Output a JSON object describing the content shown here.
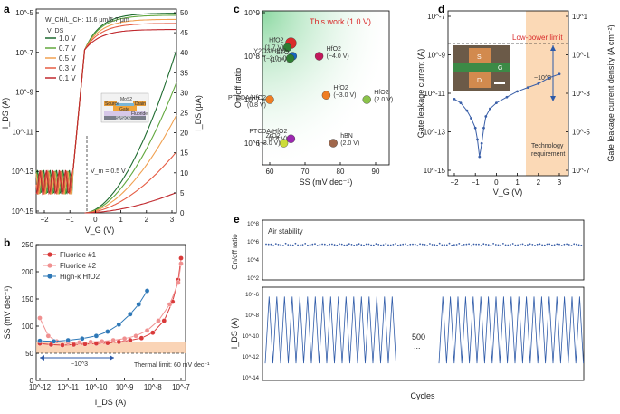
{
  "panels": {
    "a": {
      "label": "a",
      "title": "W_CH/L_CH: 11.6 μm/5.7 μm",
      "xlabel": "V_G (V)",
      "ylabel_left": "I_DS (A)",
      "ylabel_right": "I_DS (μA)",
      "legend_title": "V_DS",
      "legend": [
        "1.0 V",
        "0.7 V",
        "0.5 V",
        "0.3 V",
        "0.1 V"
      ],
      "x_ticks": [
        "−2",
        "−1",
        "0",
        "1",
        "2",
        "3"
      ],
      "y_left_ticks": [
        "10^-15",
        "10^-13",
        "10^-11",
        "10^-9",
        "10^-7",
        "10^-5"
      ],
      "y_right_ticks": [
        "0",
        "5",
        "10",
        "15",
        "20",
        "25",
        "30",
        "35",
        "40",
        "45",
        "50"
      ],
      "annotation_vm": "V_m = 0.5 V",
      "inset_labels": [
        "Source",
        "MoS2",
        "Drain",
        "Gate",
        "Fluoride",
        "Si/SiO2"
      ]
    },
    "b": {
      "label": "b",
      "xlabel": "I_DS (A)",
      "ylabel": "SS (mV dec⁻¹)",
      "legend": [
        "Fluoride #1",
        "Fluoride #2",
        "High-κ HfO2"
      ],
      "x_ticks": [
        "10^-12",
        "10^-11",
        "10^-10",
        "10^-9",
        "10^-8",
        "10^-7"
      ],
      "y_ticks": [
        "0",
        "50",
        "100",
        "150",
        "200",
        "250"
      ],
      "annotation_range": "~10^3",
      "annotation_limit": "Thermal limit: 60 mV dec⁻¹"
    },
    "c": {
      "label": "c",
      "xlabel": "SS (mV dec⁻¹)",
      "ylabel": "On/off ratio",
      "x_ticks": [
        "60",
        "70",
        "80",
        "90"
      ],
      "y_ticks": [
        "10^6",
        "10^7",
        "10^8",
        "10^9"
      ],
      "this_work": "This work (1.0 V)"
    },
    "d": {
      "label": "d",
      "xlabel": "V_G (V)",
      "ylabel_left": "Gate leakage current (A)",
      "ylabel_right": "Gate leakage current density (A cm⁻²)",
      "x_ticks": [
        "−2",
        "−1",
        "0",
        "1",
        "2",
        "3"
      ],
      "y_left_ticks": [
        "10^-15",
        "10^-13",
        "10^-11",
        "10^-9",
        "10^-7"
      ],
      "y_right_ticks": [
        "10^-7",
        "10^-5",
        "10^-3",
        "10^-1",
        "10^1"
      ],
      "low_power": "Low-power limit",
      "range": "~10^3",
      "tech": [
        "Technology",
        "requirement"
      ],
      "inset_labels": [
        "S",
        "G",
        "D"
      ]
    },
    "e": {
      "label": "e",
      "top_title": "Air stability",
      "top_ylabel": "On/off ratio",
      "top_y_ticks": [
        "10^2",
        "10^4",
        "10^6",
        "10^8"
      ],
      "bottom_ylabel": "I_DS (A)",
      "bottom_y_ticks": [
        "10^-14",
        "10^-12",
        "10^-10",
        "10^-8",
        "10^-6"
      ],
      "xlabel": "Cycles",
      "break_label": "500",
      "break_dots": "..."
    }
  },
  "chart_data": [
    {
      "panel": "a",
      "type": "line",
      "xlabel": "V_G (V)",
      "ylabel": "I_DS (A)",
      "xlim": [
        -2.5,
        3
      ],
      "ylim_log": [
        -15,
        -5
      ],
      "y2lim": [
        0,
        50
      ],
      "series": [
        {
          "name": "1.0 V",
          "color": "#1e6b2f",
          "log_plateau": -5.2,
          "linear_max_uA": 40
        },
        {
          "name": "0.7 V",
          "color": "#62a83e",
          "log_plateau": -5.3,
          "linear_max_uA": 32
        },
        {
          "name": "0.5 V",
          "color": "#f0a050",
          "log_plateau": -5.5,
          "linear_max_uA": 24
        },
        {
          "name": "0.3 V",
          "color": "#e55c43",
          "log_plateau": -5.7,
          "linear_max_uA": 15
        },
        {
          "name": "0.1 V",
          "color": "#c0282d",
          "log_plateau": -6.0,
          "linear_max_uA": 5
        }
      ]
    },
    {
      "panel": "b",
      "type": "line",
      "xlabel": "I_DS (A)",
      "ylabel": "SS (mV dec⁻¹)",
      "ylim": [
        0,
        250
      ],
      "xlim_log": [
        -12,
        -7
      ],
      "series": [
        {
          "name": "Fluoride #1",
          "color": "#d93a3a",
          "x_log": [
            -12,
            -11.6,
            -11.2,
            -10.8,
            -10.4,
            -10,
            -9.6,
            -9.2,
            -8.8,
            -8.4,
            -8,
            -7.6,
            -7.3,
            -7.1,
            -7
          ],
          "y": [
            68,
            66,
            65,
            66,
            67,
            68,
            69,
            71,
            74,
            78,
            88,
            110,
            145,
            185,
            225
          ]
        },
        {
          "name": "Fluoride #2",
          "color": "#f09090",
          "x_log": [
            -12,
            -11.7,
            -11.4,
            -11,
            -10.6,
            -10.2,
            -9.8,
            -9.4,
            -9,
            -8.6,
            -8.2,
            -7.8,
            -7.4,
            -7.1,
            -7
          ],
          "y": [
            115,
            82,
            72,
            70,
            70,
            71,
            72,
            74,
            77,
            82,
            92,
            110,
            140,
            180,
            215
          ]
        },
        {
          "name": "High-κ HfO2",
          "color": "#2e78b7",
          "x_log": [
            -12,
            -11.5,
            -11,
            -10.5,
            -10,
            -9.6,
            -9.2,
            -8.8,
            -8.5,
            -8.2
          ],
          "y": [
            73,
            72,
            74,
            77,
            82,
            90,
            103,
            122,
            140,
            165
          ]
        }
      ]
    },
    {
      "panel": "c",
      "type": "scatter",
      "xlabel": "SS (mV dec⁻¹)",
      "ylabel": "On/off ratio",
      "xlim": [
        58,
        92
      ],
      "ylim_log": [
        5.5,
        9
      ],
      "points": [
        {
          "label": "This work (1.0 V)",
          "x": 66,
          "y_log": 8.3,
          "color": "#d92b2b"
        },
        {
          "label": "HfO2 (1.7 V)",
          "x": 65,
          "y_log": 8.2,
          "color": "#2e7d32"
        },
        {
          "label": "STO (1.0 V)",
          "x": 66.5,
          "y_log": 8.0,
          "color": "#1565c0"
        },
        {
          "label": "Y2O3/HfO2 (−2.0 V)",
          "x": 65.8,
          "y_log": 7.95,
          "color": "#2e7d32"
        },
        {
          "label": "HfO2 (−4.0 V)",
          "x": 74,
          "y_log": 8.0,
          "color": "#c2185b"
        },
        {
          "label": "HfO2 (−3.0 V)",
          "x": 76,
          "y_log": 7.1,
          "color": "#ef7d22"
        },
        {
          "label": "PTCDA/HfO2 (0.8 V)",
          "x": 60,
          "y_log": 7.0,
          "color": "#ef7d22"
        },
        {
          "label": "HfO2 (2.0 V)",
          "x": 87.5,
          "y_log": 7.0,
          "color": "#8bc34a"
        },
        {
          "label": "PTCDA/HfO2 (0.8 V)",
          "x": 66,
          "y_log": 6.1,
          "color": "#9c27b0"
        },
        {
          "label": "ZrO2 (−3.0 V)",
          "x": 64,
          "y_log": 6.0,
          "color": "#cddc39"
        },
        {
          "label": "hBN (2.0 V)",
          "x": 78,
          "y_log": 6.0,
          "color": "#a0674b"
        }
      ]
    },
    {
      "panel": "d",
      "type": "line",
      "xlabel": "V_G (V)",
      "ylabel": "Gate leakage current (A)",
      "xlim": [
        -2.5,
        3.5
      ],
      "ylim_log": [
        -15,
        -7
      ],
      "low_power_limit_log": -8.2,
      "series": [
        {
          "name": "leakage",
          "color": "#3a5fa8",
          "x": [
            -2,
            -1.7,
            -1.4,
            -1.2,
            -1.0,
            -0.9,
            -0.8,
            -0.7,
            -0.6,
            -0.5,
            -0.3,
            0,
            0.5,
            1,
            1.5,
            2,
            2.5,
            3
          ],
          "y_log": [
            -11.3,
            -11.5,
            -11.9,
            -12.3,
            -12.8,
            -13.4,
            -14.3,
            -13.6,
            -12.8,
            -12.2,
            -11.8,
            -11.5,
            -11.2,
            -10.9,
            -10.7,
            -10.5,
            -10.2,
            -10.0
          ]
        }
      ]
    },
    {
      "panel": "e",
      "type": "line",
      "ylabel": "On/off ratio",
      "xlabel": "Cycles",
      "ylim_log": [
        2,
        8
      ],
      "on_off_mean_log": 5.6,
      "cycles_shown_left": 17,
      "cycles_shown_right": 19,
      "current_ylim_log": [
        -14,
        -6
      ],
      "current_high_log": -6.3,
      "current_low_log": -12.7
    }
  ]
}
